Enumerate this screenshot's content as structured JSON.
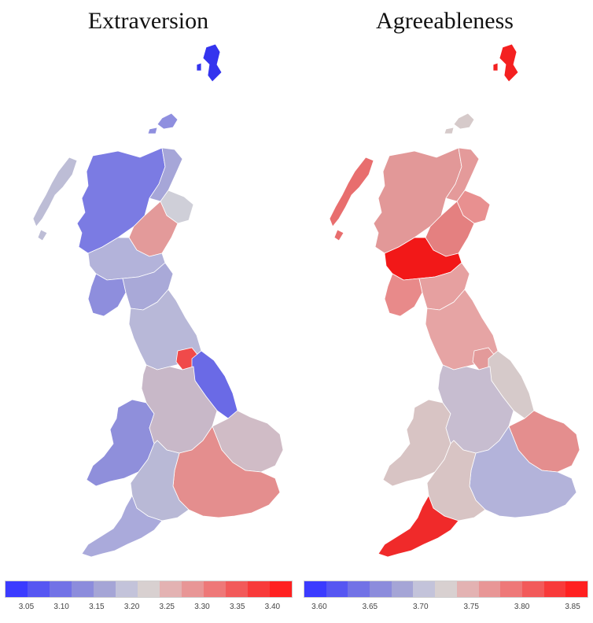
{
  "panels": [
    {
      "title": "Extraversion",
      "scale_colors": [
        "#3b3bff",
        "#5656f2",
        "#7272e6",
        "#8c8cdc",
        "#a5a5d6",
        "#c3c3da",
        "#d8d0d0",
        "#e3b2b2",
        "#e89696",
        "#ee7878",
        "#f25a5a",
        "#f83a3a",
        "#ff2020"
      ],
      "ticks": [
        "3.05",
        "3.10",
        "3.15",
        "3.20",
        "3.25",
        "3.30",
        "3.35",
        "3.40"
      ],
      "region_colors": {
        "shetland": "#3434ee",
        "orkney": "#8f8fdf",
        "scotland_north": "#7b7be3",
        "hebrides": "#bdbdd6",
        "scotland_east": "#a6a6d8",
        "aberdeen": "#cfcfd8",
        "tayside": "#e39a9a",
        "central_belt": "#b3b3da",
        "southwest_scot": "#8e8edd",
        "borders": "#a9a9d8",
        "northern_england": "#b8b8d8",
        "yorkshire_hot": "#f04a4a",
        "lincolnshire": "#6a6ae6",
        "wales": "#8f8fdb",
        "midlands": "#c8b8c8",
        "east_anglia": "#d0bcc6",
        "london_se": "#e48e8e",
        "southwest_eng": "#b9b9d6",
        "devon": "#aaaadb"
      }
    },
    {
      "title": "Agreeableness",
      "scale_colors": [
        "#3b3bff",
        "#5656f2",
        "#7272e6",
        "#8c8cdc",
        "#a5a5d6",
        "#c3c3da",
        "#d8d0d0",
        "#e3b2b2",
        "#e89696",
        "#ee7878",
        "#f25a5a",
        "#f83a3a",
        "#ff2020"
      ],
      "ticks": [
        "3.60",
        "3.65",
        "3.70",
        "3.75",
        "3.80",
        "3.85"
      ],
      "region_colors": {
        "shetland": "#f42020",
        "orkney": "#d6caca",
        "scotland_north": "#e29898",
        "hebrides": "#e86e6e",
        "scotland_east": "#e49a9a",
        "aberdeen": "#e89090",
        "tayside": "#e48080",
        "central_belt": "#f21818",
        "southwest_scot": "#e88a8a",
        "borders": "#e6a0a0",
        "northern_england": "#e6a4a4",
        "yorkshire_hot": "#e39a9a",
        "lincolnshire": "#d6caca",
        "wales": "#d8c4c4",
        "midlands": "#c7bdd0",
        "east_anglia": "#e48e8e",
        "london_se": "#b3b3da",
        "southwest_eng": "#d8c4c4",
        "devon": "#f02a2a"
      }
    }
  ]
}
